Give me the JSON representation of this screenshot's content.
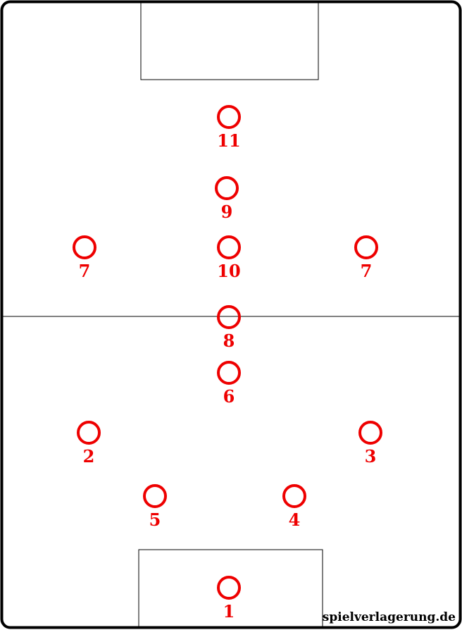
{
  "watermark": "spielverlagerung.de",
  "colors": {
    "player": "#ee0000",
    "line": "#000000",
    "background": "#ffffff"
  },
  "players": [
    {
      "id": "gk",
      "number": "1"
    },
    {
      "id": "rb",
      "number": "2"
    },
    {
      "id": "lb",
      "number": "3"
    },
    {
      "id": "lcb",
      "number": "4"
    },
    {
      "id": "rcb",
      "number": "5"
    },
    {
      "id": "dm",
      "number": "6"
    },
    {
      "id": "cm",
      "number": "8"
    },
    {
      "id": "rw",
      "number": "7"
    },
    {
      "id": "am",
      "number": "10"
    },
    {
      "id": "lw",
      "number": "7"
    },
    {
      "id": "st",
      "number": "9"
    },
    {
      "id": "ss",
      "number": "11"
    }
  ]
}
